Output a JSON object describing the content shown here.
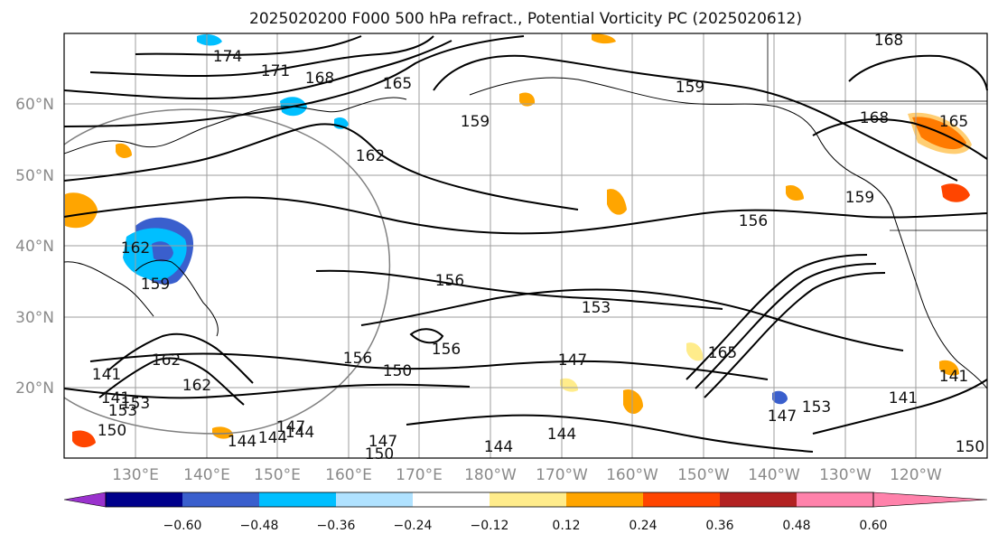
{
  "title": "2025020200 F000 500 hPa refract., Potential Vorticity PC (2025020612)",
  "lat_labels": [
    "60°N",
    "50°N",
    "40°N",
    "30°N",
    "20°N"
  ],
  "lon_labels": [
    "130°E",
    "140°E",
    "150°E",
    "160°E",
    "170°E",
    "180°W",
    "170°W",
    "160°W",
    "150°W",
    "140°W",
    "130°W",
    "120°W"
  ],
  "colorbar": {
    "colors": [
      "#9a32cd",
      "#00008b",
      "#3a5fcd",
      "#00bfff",
      "#b0e2ff",
      "#ffffff",
      "#ffec8b",
      "#ffa500",
      "#ff4500",
      "#b22222",
      "#ff82ab"
    ],
    "tick_labels": [
      "−0.60",
      "−0.48",
      "−0.36",
      "−0.24",
      "−0.12",
      "0.12",
      "0.24",
      "0.36",
      "0.48",
      "0.60"
    ]
  },
  "contour_labels": [
    "174",
    "171",
    "168",
    "165",
    "168",
    "159",
    "159",
    "168",
    "165",
    "162",
    "159",
    "156",
    "162",
    "156",
    "153",
    "156",
    "147",
    "156",
    "150",
    "162",
    "162",
    "153",
    "144",
    "144",
    "147",
    "150",
    "144",
    "141",
    "141",
    "150",
    "153",
    "147",
    "165",
    "144",
    "159",
    "144",
    "150",
    "141",
    "141",
    "153",
    "147"
  ]
}
